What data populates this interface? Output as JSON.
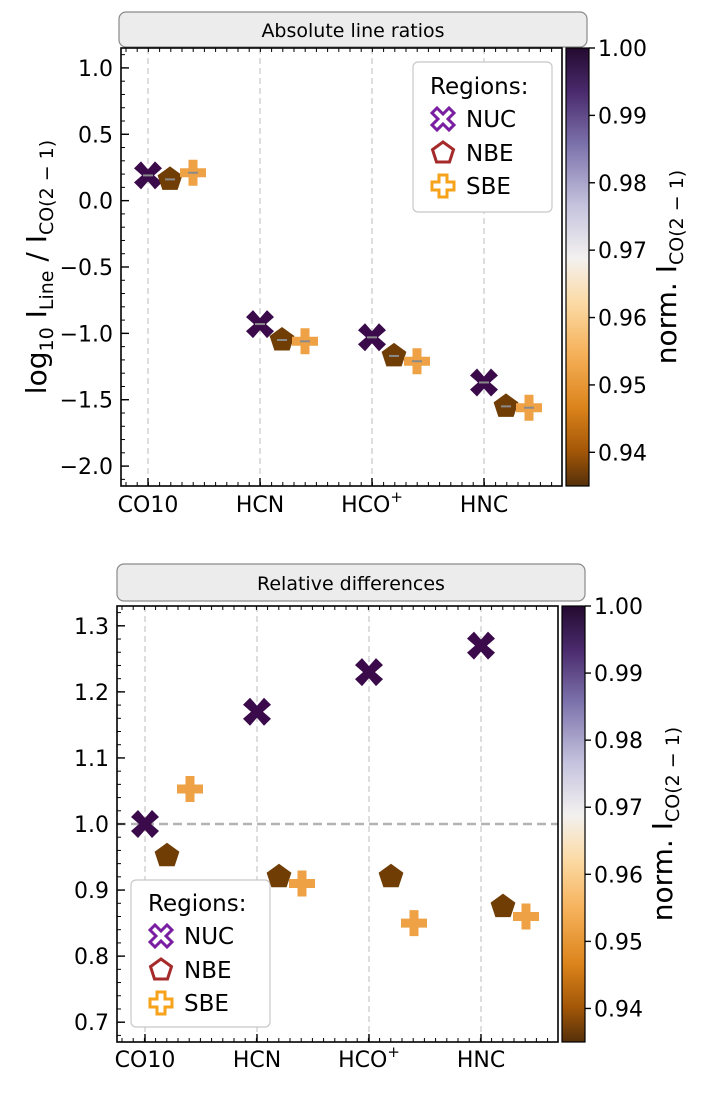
{
  "chart_data": [
    {
      "type": "scatter",
      "title": "Absolute line ratios",
      "ylabel_main": "log",
      "ylabel_main_sub": "10",
      "ylabel_l": " I",
      "ylabel_l_sub": "Line",
      "ylabel_sep": " / I",
      "ylabel_co_sub": "CO(2 − 1)",
      "ylim": [
        -2.15,
        1.15
      ],
      "yticks": [
        1.0,
        0.5,
        0.0,
        -0.5,
        -1.0,
        -1.5,
        -2.0
      ],
      "ytick_labels": [
        "1.0",
        "0.5",
        "0.0",
        "−0.5",
        "−1.0",
        "−1.5",
        "−2.0"
      ],
      "categories": [
        "CO10",
        "HCN",
        "HCO",
        "HNC"
      ],
      "category_superscripts": [
        "",
        "",
        "+",
        ""
      ],
      "legend": {
        "title": "Regions:",
        "position": "upper-right"
      },
      "series": [
        {
          "name": "NUC",
          "marker": "X",
          "values": [
            0.19,
            -0.93,
            -1.03,
            -1.37
          ],
          "cvals": [
            1.0,
            1.0,
            1.0,
            1.0
          ]
        },
        {
          "name": "NBE",
          "marker": "pentagon",
          "values": [
            0.16,
            -1.05,
            -1.17,
            -1.55
          ],
          "cvals": [
            0.9375,
            0.9375,
            0.9375,
            0.9375
          ]
        },
        {
          "name": "SBE",
          "marker": "P",
          "values": [
            0.21,
            -1.06,
            -1.21,
            -1.56
          ],
          "cvals": [
            0.955,
            0.955,
            0.955,
            0.955
          ]
        }
      ],
      "colorbar": {
        "label": "norm. I",
        "label_sub": "CO(2 − 1)",
        "range": [
          0.935,
          1.0
        ],
        "ticks": [
          1.0,
          0.99,
          0.98,
          0.97,
          0.96,
          0.95,
          0.94
        ],
        "tick_labels": [
          "1.00",
          "0.99",
          "0.98",
          "0.97",
          "0.96",
          "0.95",
          "0.94"
        ]
      }
    },
    {
      "type": "scatter",
      "title": "Relative differences",
      "ylim": [
        0.67,
        1.33
      ],
      "yticks": [
        1.3,
        1.2,
        1.1,
        1.0,
        0.9,
        0.8,
        0.7
      ],
      "ytick_labels": [
        "1.3",
        "1.2",
        "1.1",
        "1.0",
        "0.9",
        "0.8",
        "0.7"
      ],
      "reference_line": 1.0,
      "categories": [
        "CO10",
        "HCN",
        "HCO",
        "HNC"
      ],
      "category_superscripts": [
        "",
        "",
        "+",
        ""
      ],
      "legend": {
        "title": "Regions:",
        "position": "lower-left"
      },
      "series": [
        {
          "name": "NUC",
          "marker": "X",
          "values": [
            1.0,
            1.17,
            1.23,
            1.27
          ],
          "cvals": [
            1.0,
            1.0,
            1.0,
            1.0
          ]
        },
        {
          "name": "NBE",
          "marker": "pentagon",
          "values": [
            0.952,
            0.92,
            0.92,
            0.875
          ],
          "cvals": [
            0.9375,
            0.9375,
            0.9375,
            0.9375
          ]
        },
        {
          "name": "SBE",
          "marker": "P",
          "values": [
            1.053,
            0.91,
            0.85,
            0.86
          ],
          "cvals": [
            0.955,
            0.955,
            0.955,
            0.955
          ]
        }
      ],
      "colorbar": {
        "label": "norm. I",
        "label_sub": "CO(2 − 1)",
        "range": [
          0.935,
          1.0
        ],
        "ticks": [
          1.0,
          0.99,
          0.98,
          0.97,
          0.96,
          0.95,
          0.94
        ],
        "tick_labels": [
          "1.00",
          "0.99",
          "0.98",
          "0.97",
          "0.96",
          "0.95",
          "0.94"
        ]
      }
    }
  ],
  "colors": {
    "legend_nuc": "#7b1fa2",
    "legend_nbe": "#a52a2a",
    "legend_sbe": "#f7a21b",
    "colormap": [
      "#3a0a4a",
      "#5a3d85",
      "#8e86b8",
      "#c9c7e0",
      "#f5f2ee",
      "#fbd79f",
      "#f4ad52",
      "#d97f19",
      "#9a5208",
      "#5a3204"
    ]
  }
}
